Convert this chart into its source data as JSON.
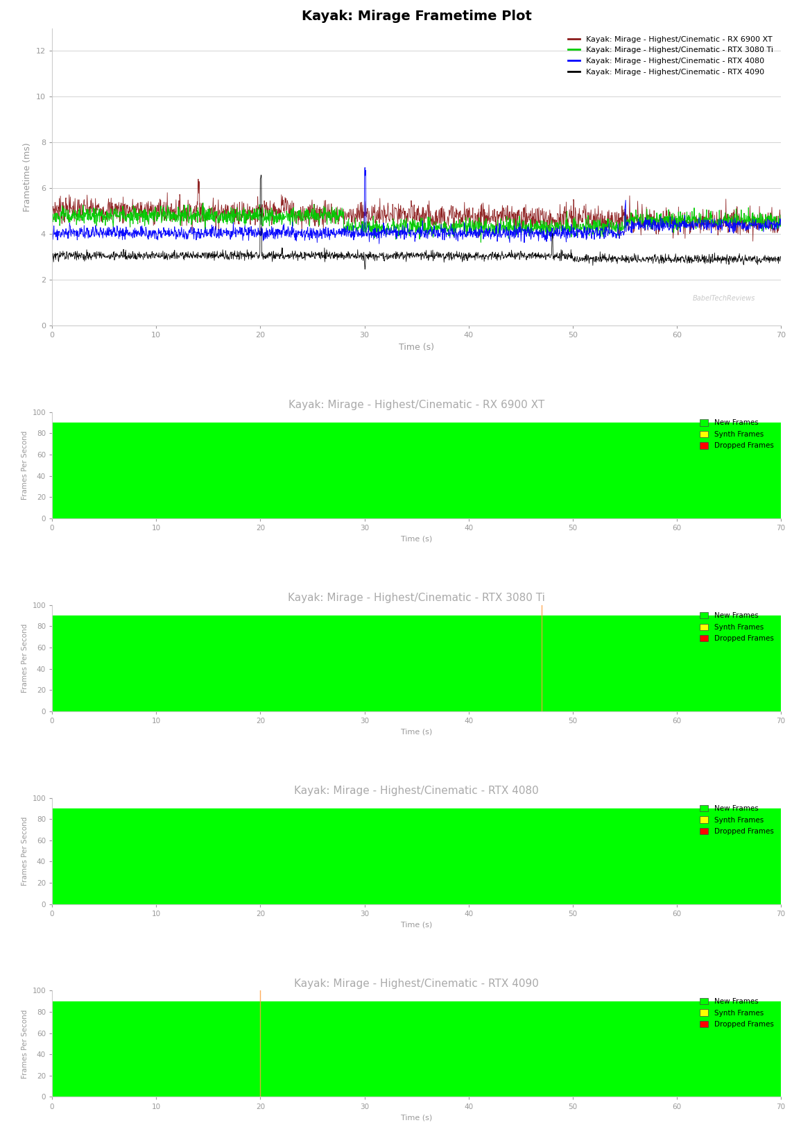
{
  "title_frametime": "Kayak: Mirage Frametime Plot",
  "xlabel": "Time (s)",
  "ylabel_frametime": "Frametime (ms)",
  "ylabel_fps": "Frames Per Second",
  "xlim": [
    0,
    70
  ],
  "ylim_frametime": [
    0,
    13
  ],
  "ylim_fps": [
    0,
    100
  ],
  "xticks": [
    0,
    10,
    20,
    30,
    40,
    50,
    60,
    70
  ],
  "yticks_frametime": [
    0,
    2,
    4,
    6,
    8,
    10,
    12
  ],
  "yticks_fps": [
    0,
    20,
    40,
    60,
    80,
    100
  ],
  "legend_entries": [
    {
      "label": "Kayak: Mirage - Highest/Cinematic - RX 6900 XT",
      "color": "#8B1A1A"
    },
    {
      "label": "Kayak: Mirage - Highest/Cinematic - RTX 3080 Ti",
      "color": "#00CC00"
    },
    {
      "label": "Kayak: Mirage - Highest/Cinematic - RTX 4080",
      "color": "#0000FF"
    },
    {
      "label": "Kayak: Mirage - Highest/Cinematic - RTX 4090",
      "color": "#000000"
    }
  ],
  "bar_titles": [
    "Kayak: Mirage - Highest/Cinematic - RX 6900 XT",
    "Kayak: Mirage - Highest/Cinematic - RTX 3080 Ti",
    "Kayak: Mirage - Highest/Cinematic - RTX 4080",
    "Kayak: Mirage - Highest/Cinematic - RTX 4090"
  ],
  "bar_new_frames_color": "#00FF00",
  "bar_synth_frames_color": "#FFFF00",
  "bar_dropped_frames_color": "#FF0000",
  "bar_legend": [
    "New Frames",
    "Synth Frames",
    "Dropped Frames"
  ],
  "watermark": "BabelTechReviews",
  "background_color": "#FFFFFF",
  "plot_bg_color": "#FFFFFF",
  "grid_color": "#CCCCCC",
  "title_color": "#AAAAAA",
  "axes_color": "#AAAAAA",
  "tick_color": "#999999",
  "frametime_line_colors": [
    "#8B1A1A",
    "#00CC00",
    "#0000FF",
    "#000000"
  ],
  "orange_spike_color": "#FFA040",
  "orange_spike_configs": [
    {
      "plot_idx": 1,
      "x": 47.0
    },
    {
      "plot_idx": 3,
      "x": 20.0
    }
  ],
  "new_frames_level": 90
}
